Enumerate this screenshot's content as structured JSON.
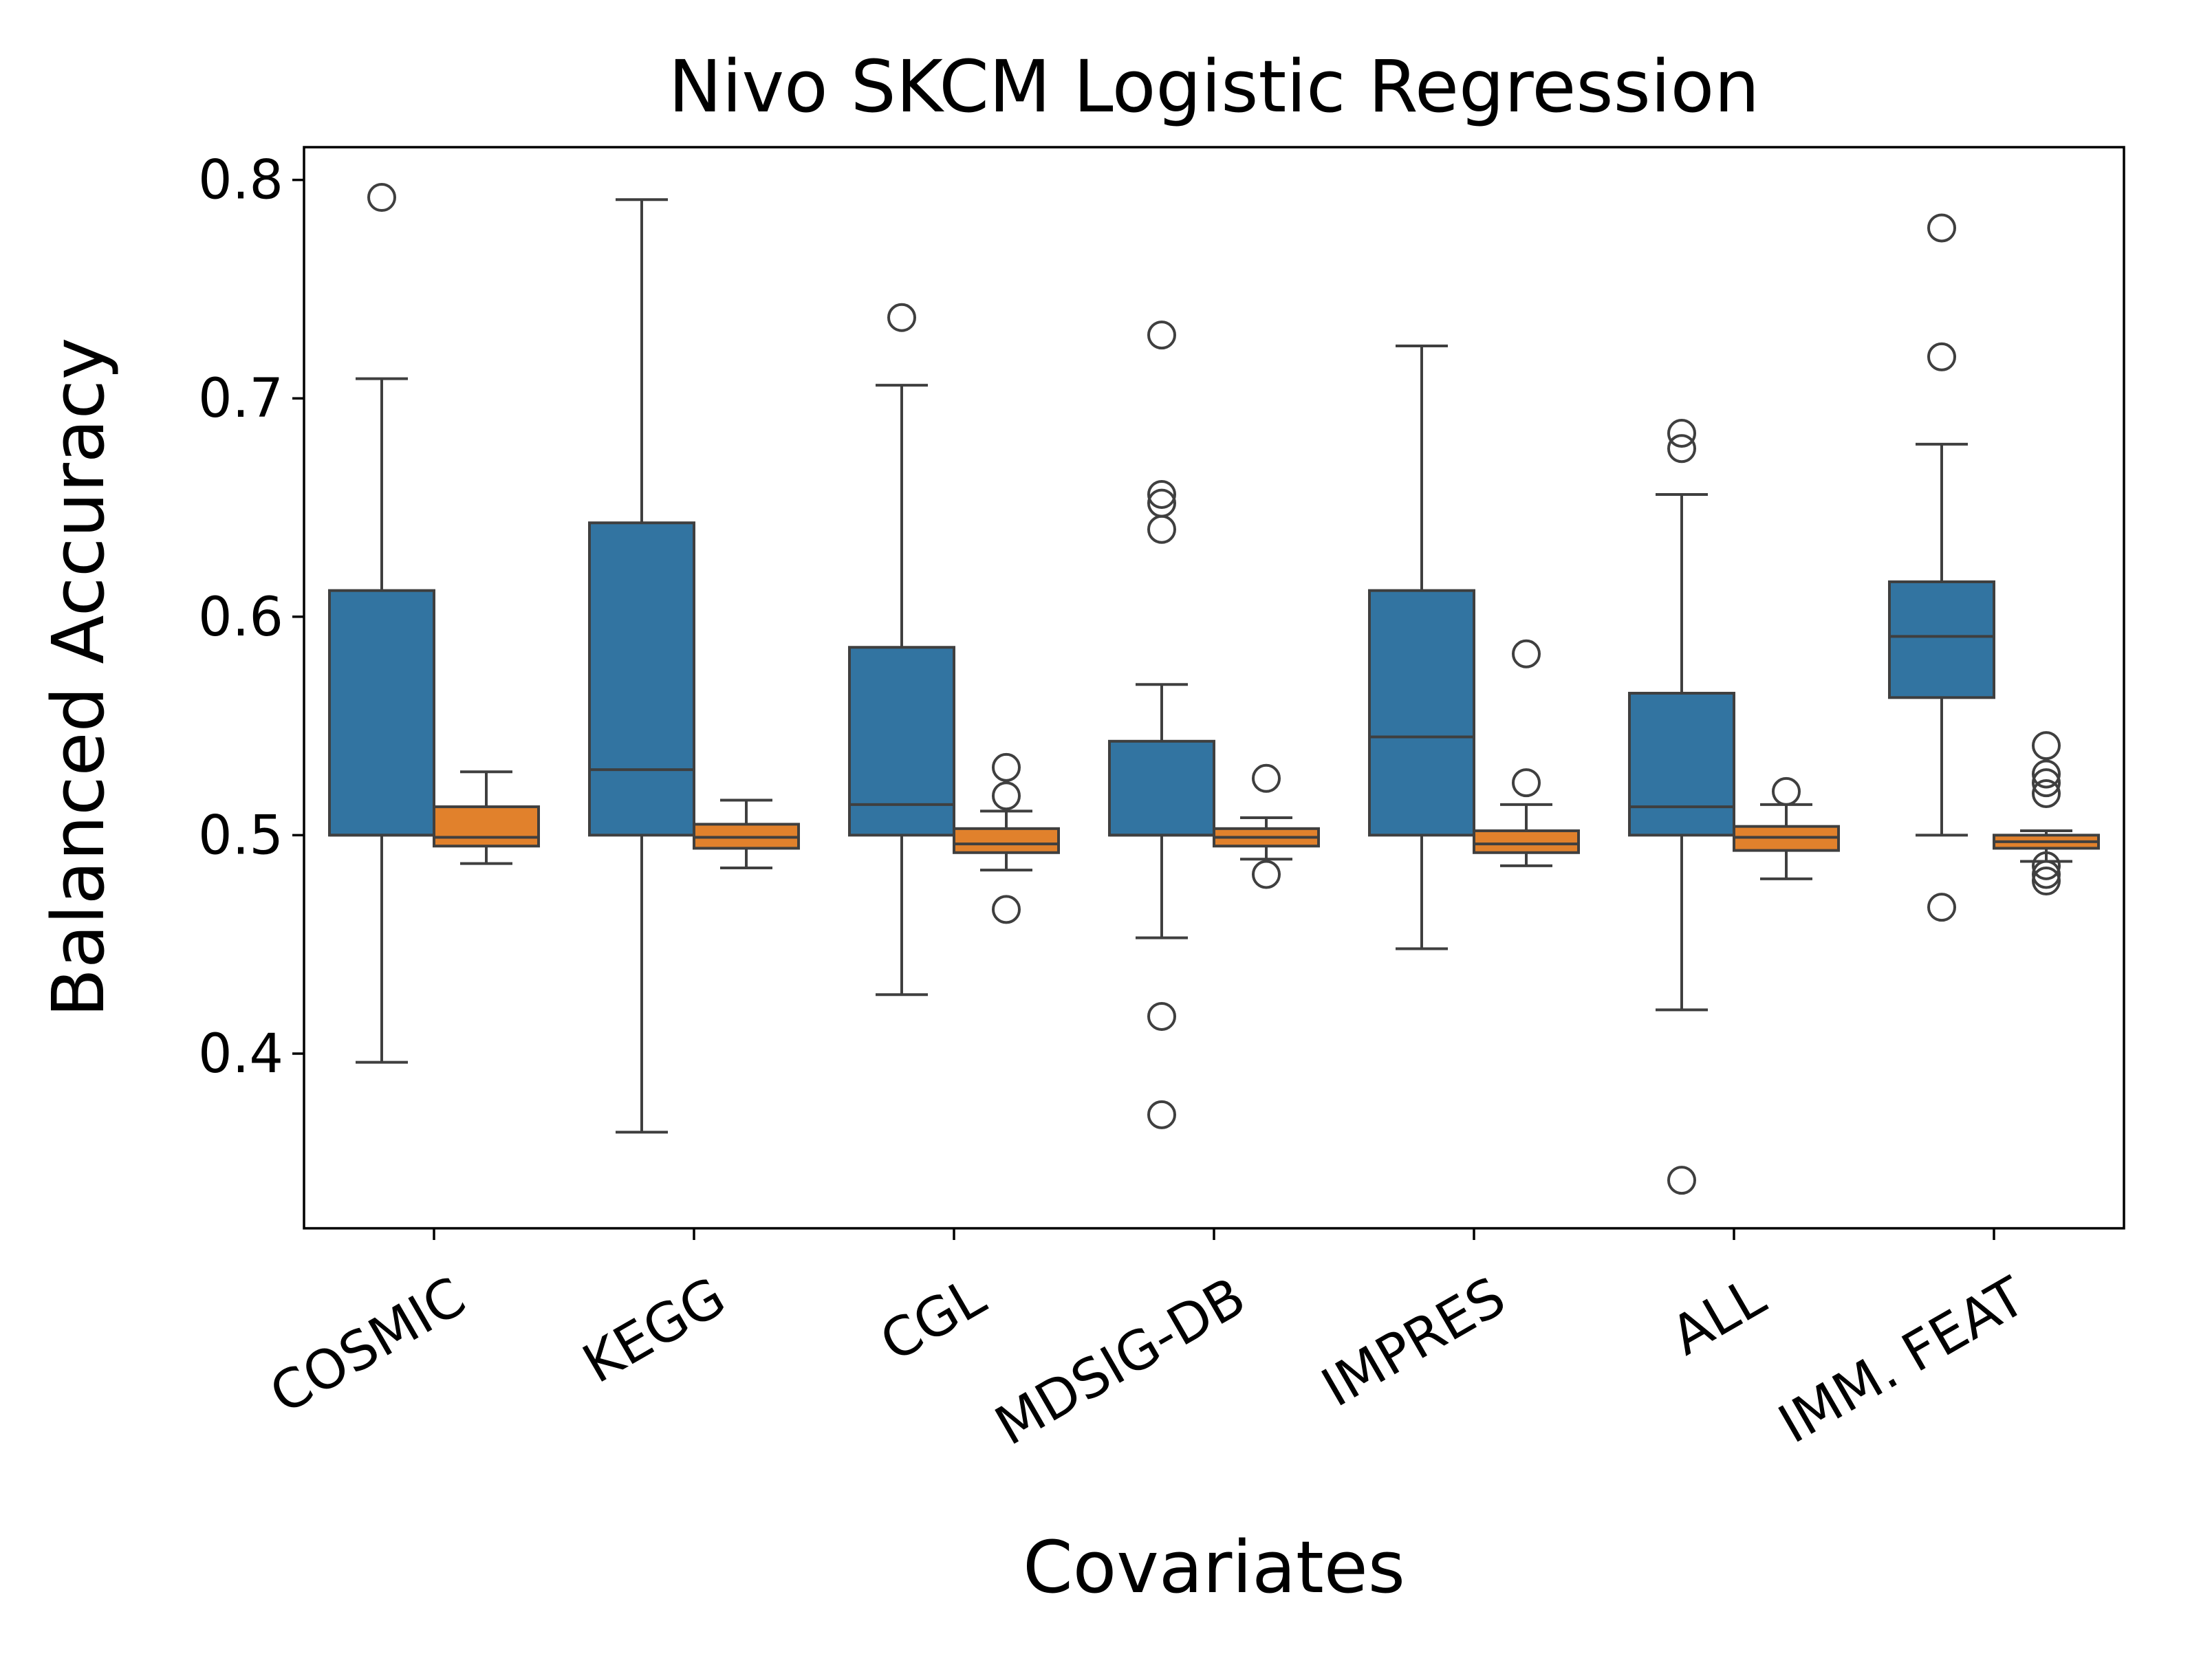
{
  "chart_data": {
    "type": "box",
    "title": "Nivo  SKCM  Logistic Regression",
    "xlabel": "Covariates",
    "ylabel": "Balanced Accuracy",
    "ylim": [
      0.32,
      0.815
    ],
    "yticks": [
      {
        "value": 0.4,
        "label": "0.4"
      },
      {
        "value": 0.5,
        "label": "0.5"
      },
      {
        "value": 0.6,
        "label": "0.6"
      },
      {
        "value": 0.7,
        "label": "0.7"
      },
      {
        "value": 0.8,
        "label": "0.8"
      }
    ],
    "categories": [
      "COSMIC",
      "KEGG",
      "CGL",
      "MDSIG-DB",
      "IMPRES",
      "ALL",
      "IMM. FEAT"
    ],
    "grid": false,
    "legend": "none",
    "series": [
      {
        "color": "#3274a1",
        "boxes": [
          {
            "whislo": 0.396,
            "q1": 0.5,
            "med": 0.5,
            "q3": 0.612,
            "whishi": 0.709,
            "fliers": [
              0.792
            ]
          },
          {
            "whislo": 0.364,
            "q1": 0.5,
            "med": 0.53,
            "q3": 0.643,
            "whishi": 0.791,
            "fliers": []
          },
          {
            "whislo": 0.427,
            "q1": 0.5,
            "med": 0.514,
            "q3": 0.586,
            "whishi": 0.706,
            "fliers": [
              0.737
            ]
          },
          {
            "whislo": 0.453,
            "q1": 0.5,
            "med": 0.5,
            "q3": 0.543,
            "whishi": 0.569,
            "fliers": [
              0.729,
              0.656,
              0.652,
              0.64,
              0.417,
              0.372
            ]
          },
          {
            "whislo": 0.448,
            "q1": 0.5,
            "med": 0.545,
            "q3": 0.612,
            "whishi": 0.724,
            "fliers": []
          },
          {
            "whislo": 0.42,
            "q1": 0.5,
            "med": 0.513,
            "q3": 0.565,
            "whishi": 0.656,
            "fliers": [
              0.684,
              0.677,
              0.342
            ]
          },
          {
            "whislo": 0.5,
            "q1": 0.563,
            "med": 0.591,
            "q3": 0.616,
            "whishi": 0.679,
            "fliers": [
              0.778,
              0.719,
              0.467
            ]
          }
        ]
      },
      {
        "color": "#e1812c",
        "boxes": [
          {
            "whislo": 0.487,
            "q1": 0.495,
            "med": 0.499,
            "q3": 0.513,
            "whishi": 0.529,
            "fliers": []
          },
          {
            "whislo": 0.485,
            "q1": 0.494,
            "med": 0.499,
            "q3": 0.505,
            "whishi": 0.516,
            "fliers": []
          },
          {
            "whislo": 0.484,
            "q1": 0.492,
            "med": 0.496,
            "q3": 0.503,
            "whishi": 0.511,
            "fliers": [
              0.531,
              0.518,
              0.466
            ]
          },
          {
            "whislo": 0.489,
            "q1": 0.495,
            "med": 0.499,
            "q3": 0.503,
            "whishi": 0.508,
            "fliers": [
              0.526,
              0.482
            ]
          },
          {
            "whislo": 0.486,
            "q1": 0.492,
            "med": 0.496,
            "q3": 0.502,
            "whishi": 0.514,
            "fliers": [
              0.583,
              0.524
            ]
          },
          {
            "whislo": 0.48,
            "q1": 0.493,
            "med": 0.499,
            "q3": 0.504,
            "whishi": 0.514,
            "fliers": [
              0.52
            ]
          },
          {
            "whislo": 0.488,
            "q1": 0.494,
            "med": 0.497,
            "q3": 0.5,
            "whishi": 0.502,
            "fliers": [
              0.541,
              0.528,
              0.524,
              0.519,
              0.486,
              0.482,
              0.479
            ]
          }
        ]
      }
    ]
  }
}
